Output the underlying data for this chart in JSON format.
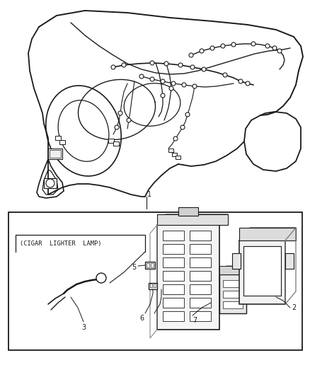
{
  "background_color": "#ffffff",
  "line_color": "#1a1a1a",
  "fig_width": 4.38,
  "fig_height": 5.33,
  "dpi": 100,
  "panel_color": "#ffffff",
  "gray_light": "#d8d8d8",
  "gray_mid": "#b0b0b0"
}
